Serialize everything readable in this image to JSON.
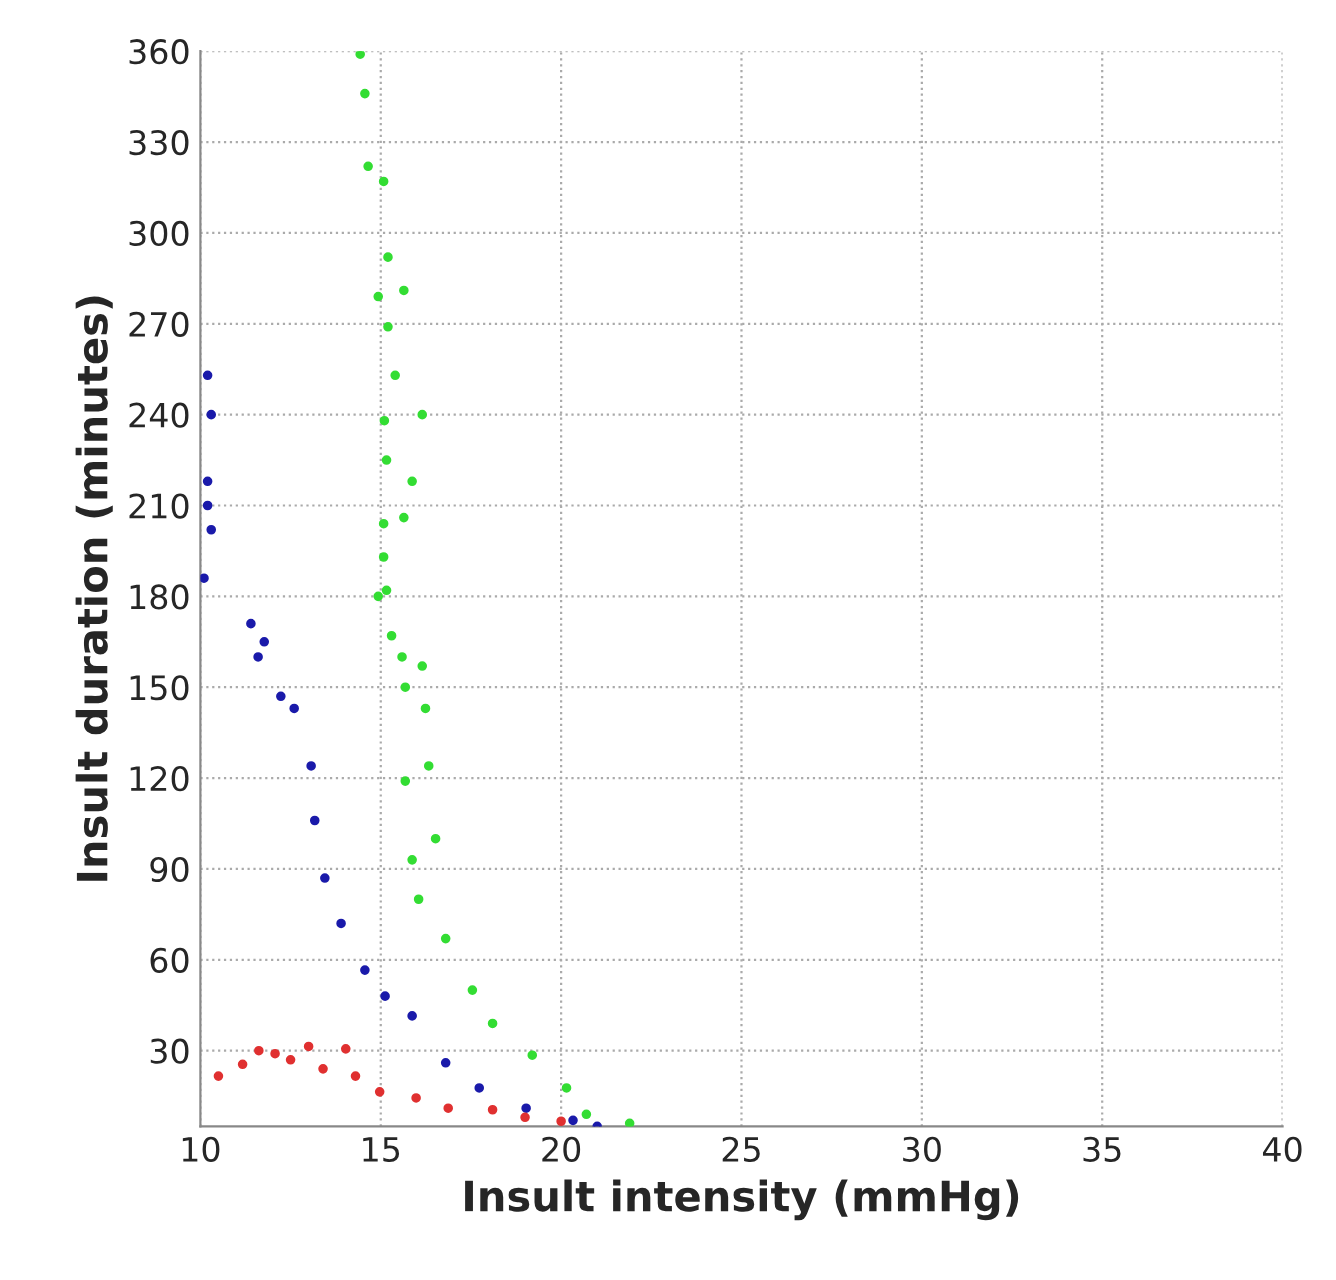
{
  "chart_data": {
    "type": "scatter",
    "xlabel": "Insult intensity (mmHg)",
    "ylabel": "Insult duration (minutes)",
    "xlim": [
      10,
      40
    ],
    "xticks": [
      10,
      15,
      20,
      25,
      30,
      35,
      40
    ],
    "ylim": [
      5,
      360
    ],
    "yticks": [
      30,
      60,
      90,
      120,
      150,
      180,
      210,
      240,
      270,
      300,
      330,
      360
    ],
    "grid": true,
    "marker": "circle",
    "series": [
      {
        "color": "#33dd33",
        "x": [
          14.43,
          14.56,
          14.65,
          15.08,
          15.2,
          15.64,
          14.93,
          15.2,
          15.4,
          16.15,
          15.1,
          15.16,
          15.87,
          15.64,
          15.08,
          15.16,
          15.08,
          14.93,
          15.3,
          15.59,
          16.15,
          15.68,
          16.24,
          16.33,
          15.68,
          16.52,
          15.87,
          16.05,
          16.8,
          17.54,
          18.1,
          19.2,
          20.15,
          20.7,
          21.9
        ],
        "values": [
          359,
          346,
          322,
          317,
          292,
          281,
          279,
          269,
          253,
          240,
          238,
          225,
          218,
          206,
          204,
          182,
          193,
          180,
          167,
          160,
          157,
          150,
          143,
          124,
          119,
          100,
          93,
          80,
          67,
          50,
          39,
          28.5,
          17.7,
          9,
          6
        ]
      },
      {
        "color": "#1a1aaa",
        "x": [
          10.2,
          10.3,
          10.2,
          10.2,
          10.3,
          10.1,
          11.4,
          11.77,
          11.6,
          12.23,
          12.6,
          13.07,
          13.17,
          13.45,
          13.9,
          14.56,
          15.12,
          15.87,
          16.8,
          17.73,
          19.03,
          20.33,
          21.0
        ],
        "values": [
          253,
          240,
          218,
          210,
          202,
          186,
          171,
          165,
          160,
          147,
          143,
          124,
          106,
          87,
          72,
          56.6,
          48,
          41.5,
          26,
          17.7,
          11,
          7,
          5
        ]
      },
      {
        "color": "#e03030",
        "x": [
          10.5,
          11.17,
          11.62,
          12.07,
          12.5,
          13.0,
          13.4,
          14.03,
          14.3,
          14.97,
          15.98,
          16.87,
          18.1,
          19.0,
          20.0
        ],
        "values": [
          21.6,
          25.5,
          30,
          29,
          27,
          31.4,
          24,
          30.6,
          21.6,
          16.4,
          14.4,
          11,
          10.5,
          8,
          6.7
        ]
      }
    ]
  }
}
